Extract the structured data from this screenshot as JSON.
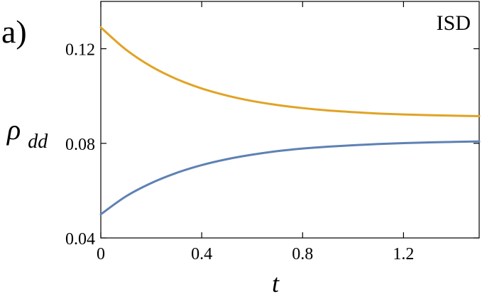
{
  "panel_label": "a)",
  "chart_data": {
    "type": "line",
    "title": "",
    "annotation": "ISD",
    "xlabel": "t",
    "ylabel_main": "ρ",
    "ylabel_sub": "dd",
    "xlim": [
      0,
      1.5
    ],
    "ylim": [
      0.04,
      0.14
    ],
    "xticks": [
      0,
      0.4,
      0.8,
      1.2
    ],
    "xtick_labels": [
      "0",
      "0.4",
      "0.8",
      "1.2"
    ],
    "yticks": [
      0.04,
      0.08,
      0.12
    ],
    "ytick_labels": [
      "0.04",
      "0.08",
      "0.12"
    ],
    "grid": false,
    "legend": "none",
    "series": [
      {
        "color": "#E1A325",
        "x": [
          0,
          0.1,
          0.2,
          0.3,
          0.4,
          0.5,
          0.6,
          0.7,
          0.8,
          0.9,
          1.0,
          1.1,
          1.2,
          1.3,
          1.4,
          1.5
        ],
        "y": [
          0.129,
          0.1196,
          0.1125,
          0.1072,
          0.1032,
          0.1002,
          0.0979,
          0.0962,
          0.0949,
          0.0939,
          0.0932,
          0.0926,
          0.0922,
          0.0919,
          0.0917,
          0.0915
        ]
      },
      {
        "color": "#5E81B5",
        "x": [
          0,
          0.1,
          0.2,
          0.3,
          0.4,
          0.5,
          0.6,
          0.7,
          0.8,
          0.9,
          1.0,
          1.1,
          1.2,
          1.3,
          1.4,
          1.5
        ],
        "y": [
          0.05,
          0.0576,
          0.0632,
          0.0675,
          0.0708,
          0.0733,
          0.0752,
          0.0767,
          0.0778,
          0.0786,
          0.0792,
          0.0797,
          0.0801,
          0.0804,
          0.0806,
          0.0808
        ]
      }
    ]
  }
}
